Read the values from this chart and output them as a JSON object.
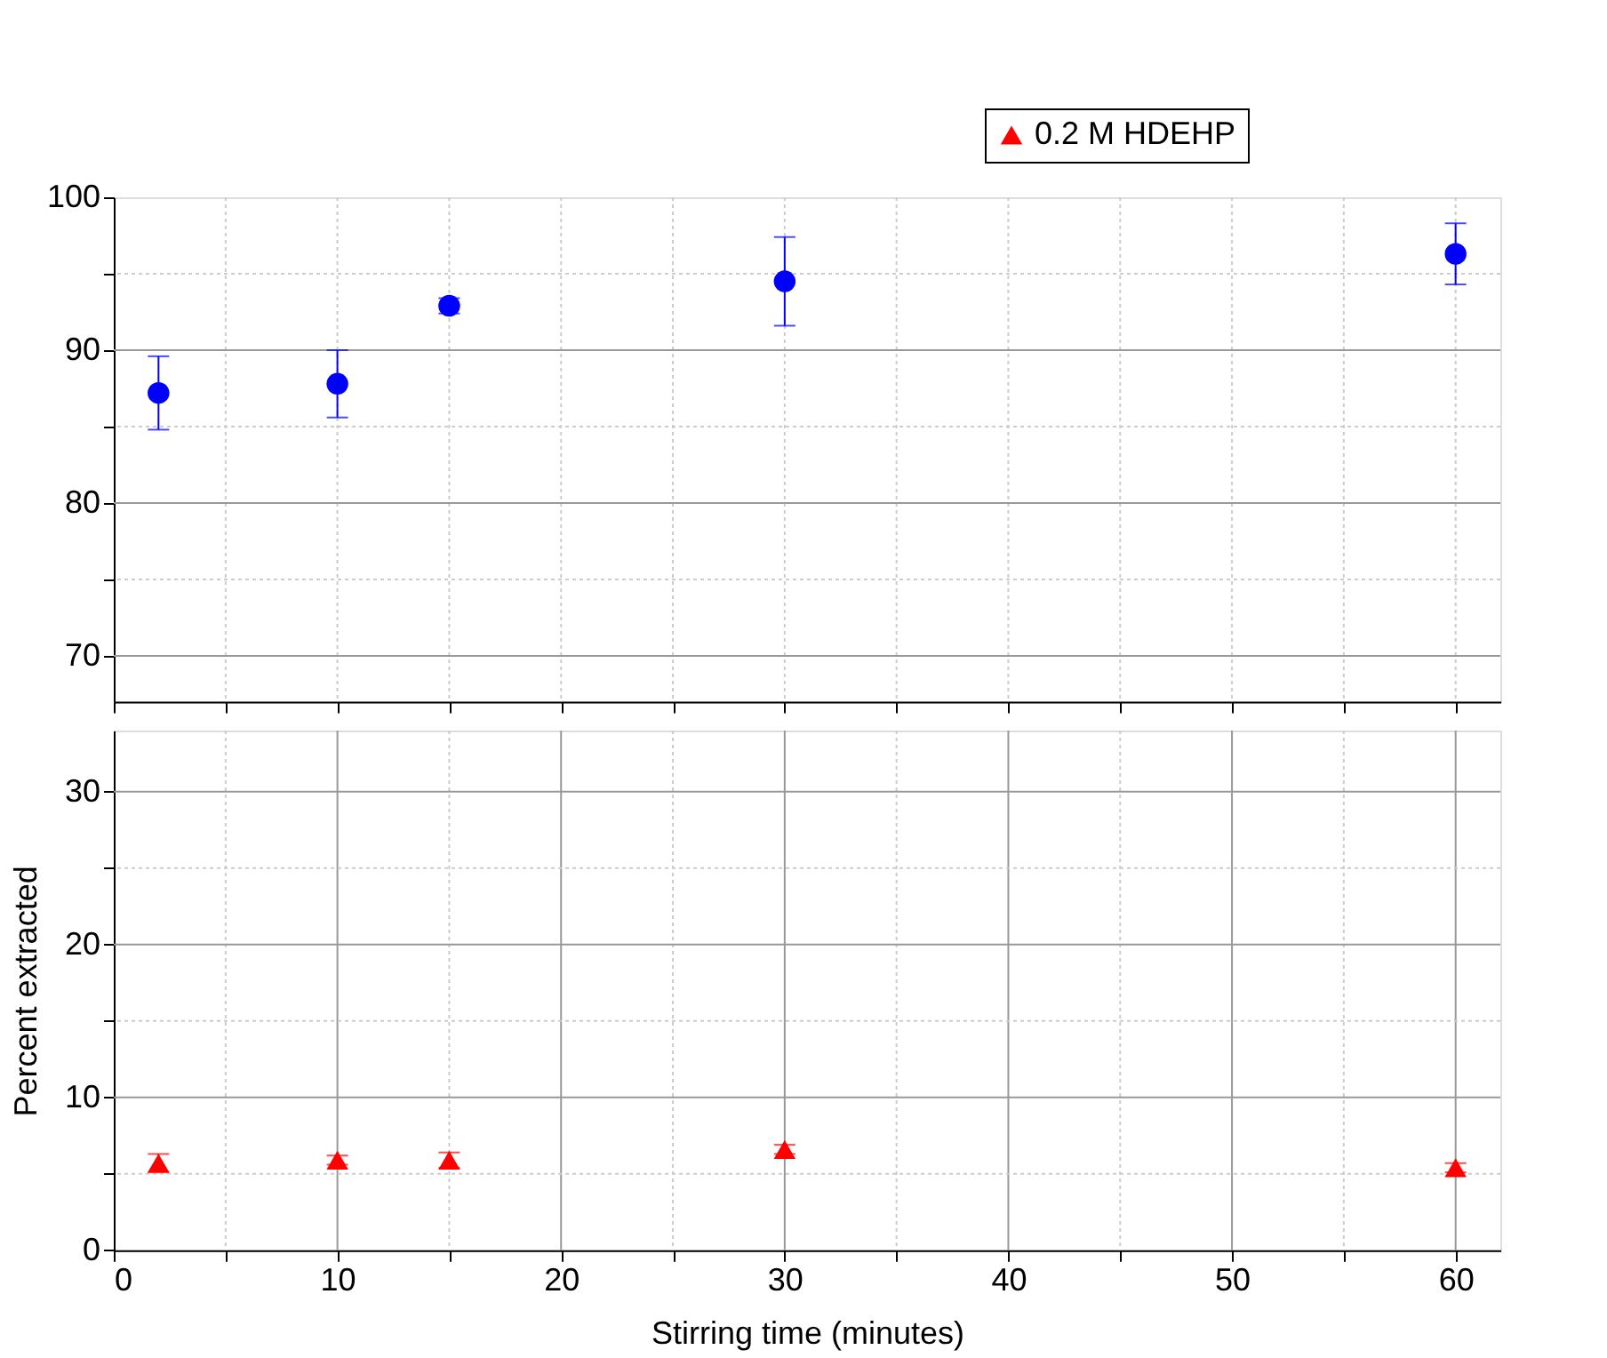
{
  "chart_data": [
    {
      "type": "scatter",
      "x": [
        2,
        10,
        15,
        30,
        60
      ],
      "xlim": [
        0,
        62
      ],
      "xticks": [
        {
          "value": 0,
          "label": null
        },
        {
          "value": 5,
          "label": null
        },
        {
          "value": 10,
          "label": null
        },
        {
          "value": 15,
          "label": null
        },
        {
          "value": 20,
          "label": null
        },
        {
          "value": 25,
          "label": null
        },
        {
          "value": 30,
          "label": null
        },
        {
          "value": 35,
          "label": null
        },
        {
          "value": 40,
          "label": null
        },
        {
          "value": 45,
          "label": null
        },
        {
          "value": 50,
          "label": null
        },
        {
          "value": 55,
          "label": null
        },
        {
          "value": 60,
          "label": null
        }
      ],
      "ylim": [
        67,
        100
      ],
      "yticks": [
        70,
        {
          "value": 75,
          "label": null
        },
        80,
        {
          "value": 85,
          "label": null
        },
        90,
        {
          "value": 95,
          "label": null
        },
        100
      ],
      "tick_labels": "y",
      "grid": true,
      "series": [
        {
          "color": "#0000ff",
          "marker": "circle",
          "values": [
            87.2,
            87.8,
            92.9,
            94.5,
            96.3
          ],
          "errors": [
            2.4,
            2.2,
            0.5,
            2.9,
            2.0
          ]
        }
      ]
    },
    {
      "type": "scatter",
      "x": [
        2,
        10,
        15,
        30,
        60
      ],
      "xlim": [
        0,
        62
      ],
      "xticks": [
        0,
        {
          "value": 5,
          "label": null
        },
        10,
        {
          "value": 15,
          "label": null
        },
        20,
        {
          "value": 25,
          "label": null
        },
        30,
        {
          "value": 35,
          "label": null
        },
        40,
        {
          "value": 45,
          "label": null
        },
        50,
        {
          "value": 55,
          "label": null
        },
        60
      ],
      "ylim": [
        0,
        34
      ],
      "yticks": [
        0,
        {
          "value": 5,
          "label": null
        },
        10,
        {
          "value": 15,
          "label": null
        },
        20,
        {
          "value": 25,
          "label": null
        },
        30
      ],
      "xlabel": "Stirring time (minutes)",
      "ylabel": "Percent extracted",
      "grid": true,
      "legend": "top right",
      "series": [
        {
          "name": "0.2 M HDEHP",
          "color": "#ff0000",
          "marker": "triangle",
          "values": [
            5.7,
            5.9,
            5.9,
            6.6,
            5.4
          ],
          "errors": [
            0.6,
            0.3,
            0.5,
            0.3,
            0.3
          ]
        }
      ]
    }
  ]
}
